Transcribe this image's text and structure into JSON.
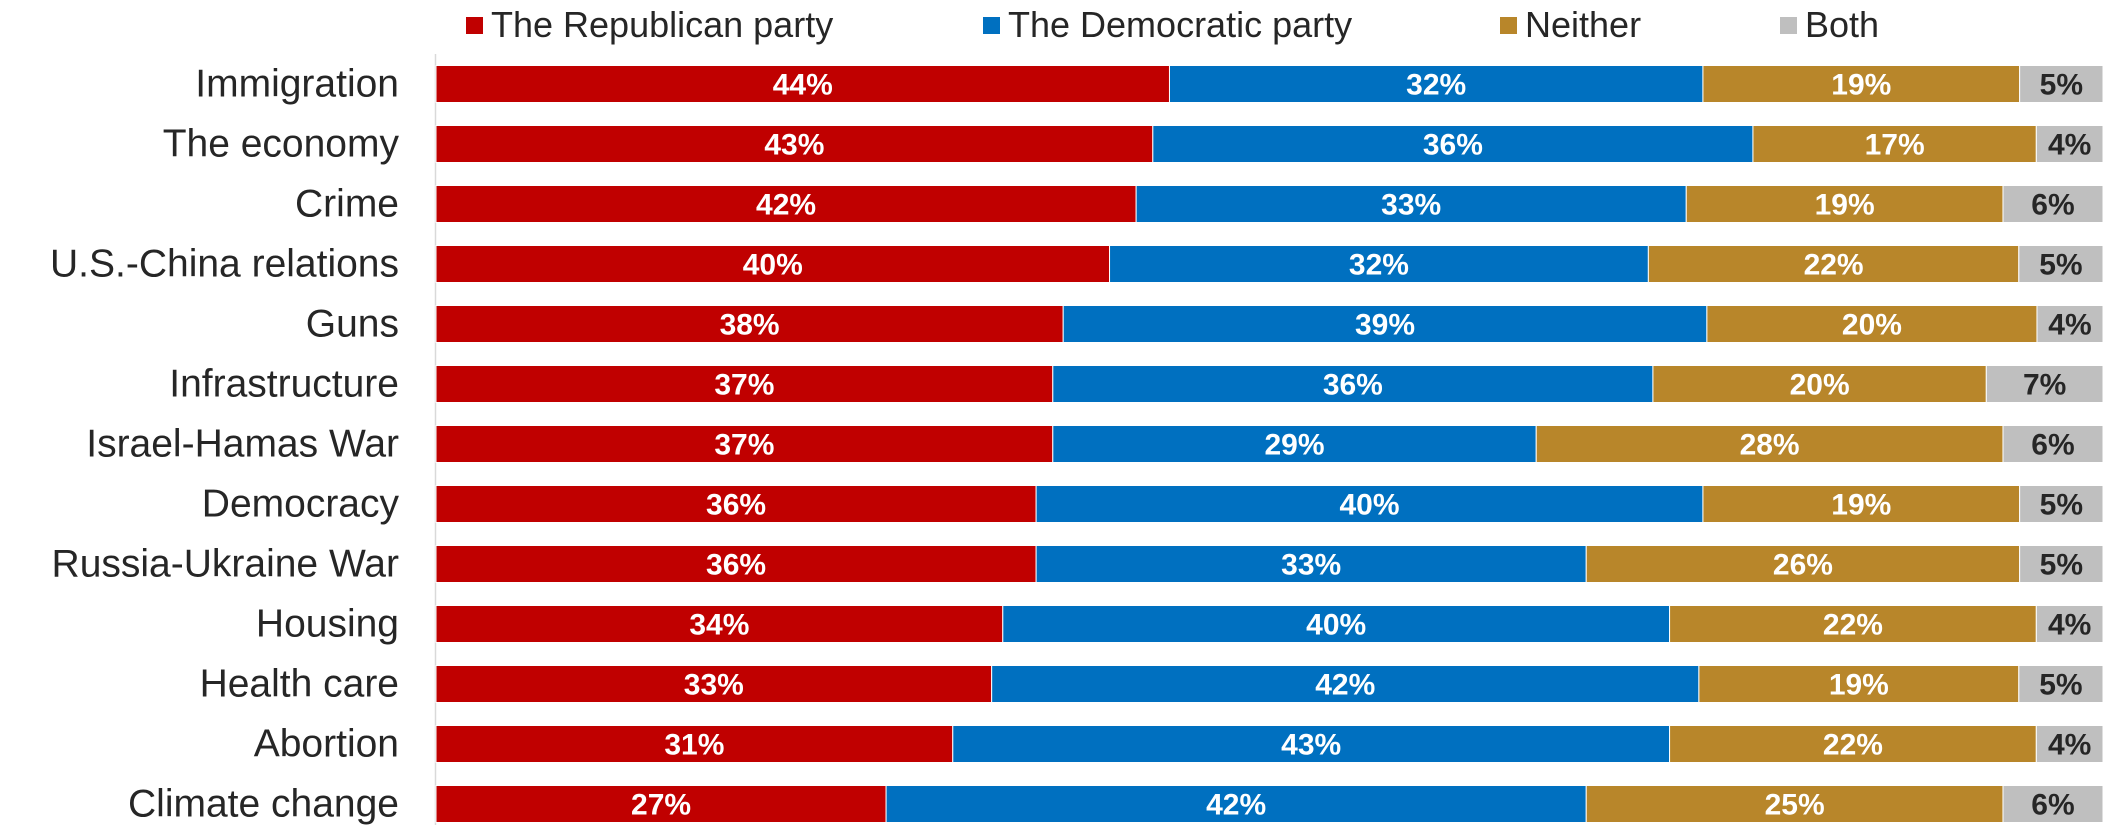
{
  "chart_data": {
    "type": "bar",
    "orientation": "horizontal",
    "stacked": true,
    "percent_stacked": true,
    "legend_position": "top",
    "grid": false,
    "xlim": [
      0,
      100
    ],
    "categories": [
      "Immigration",
      "The economy",
      "Crime",
      "U.S.-China relations",
      "Guns",
      "Infrastructure",
      "Israel-Hamas War",
      "Democracy",
      "Russia-Ukraine War",
      "Housing",
      "Health care",
      "Abortion",
      "Climate change"
    ],
    "series": [
      {
        "name": "The Republican party",
        "color": "#C00000",
        "label_color": "#ffffff",
        "values": [
          44,
          43,
          42,
          40,
          38,
          37,
          37,
          36,
          36,
          34,
          33,
          31,
          27
        ]
      },
      {
        "name": "The Democratic party",
        "color": "#0070C0",
        "label_color": "#ffffff",
        "values": [
          32,
          36,
          33,
          32,
          39,
          36,
          29,
          40,
          33,
          40,
          42,
          43,
          42
        ]
      },
      {
        "name": "Neither",
        "color": "#B8862A",
        "label_color": "#ffffff",
        "values": [
          19,
          17,
          19,
          22,
          20,
          20,
          28,
          19,
          26,
          22,
          19,
          22,
          25
        ]
      },
      {
        "name": "Both",
        "color": "#BFBFBF",
        "label_color": "#262626",
        "values": [
          5,
          4,
          6,
          5,
          4,
          7,
          6,
          5,
          5,
          4,
          5,
          4,
          6
        ]
      }
    ],
    "value_suffix": "%"
  }
}
